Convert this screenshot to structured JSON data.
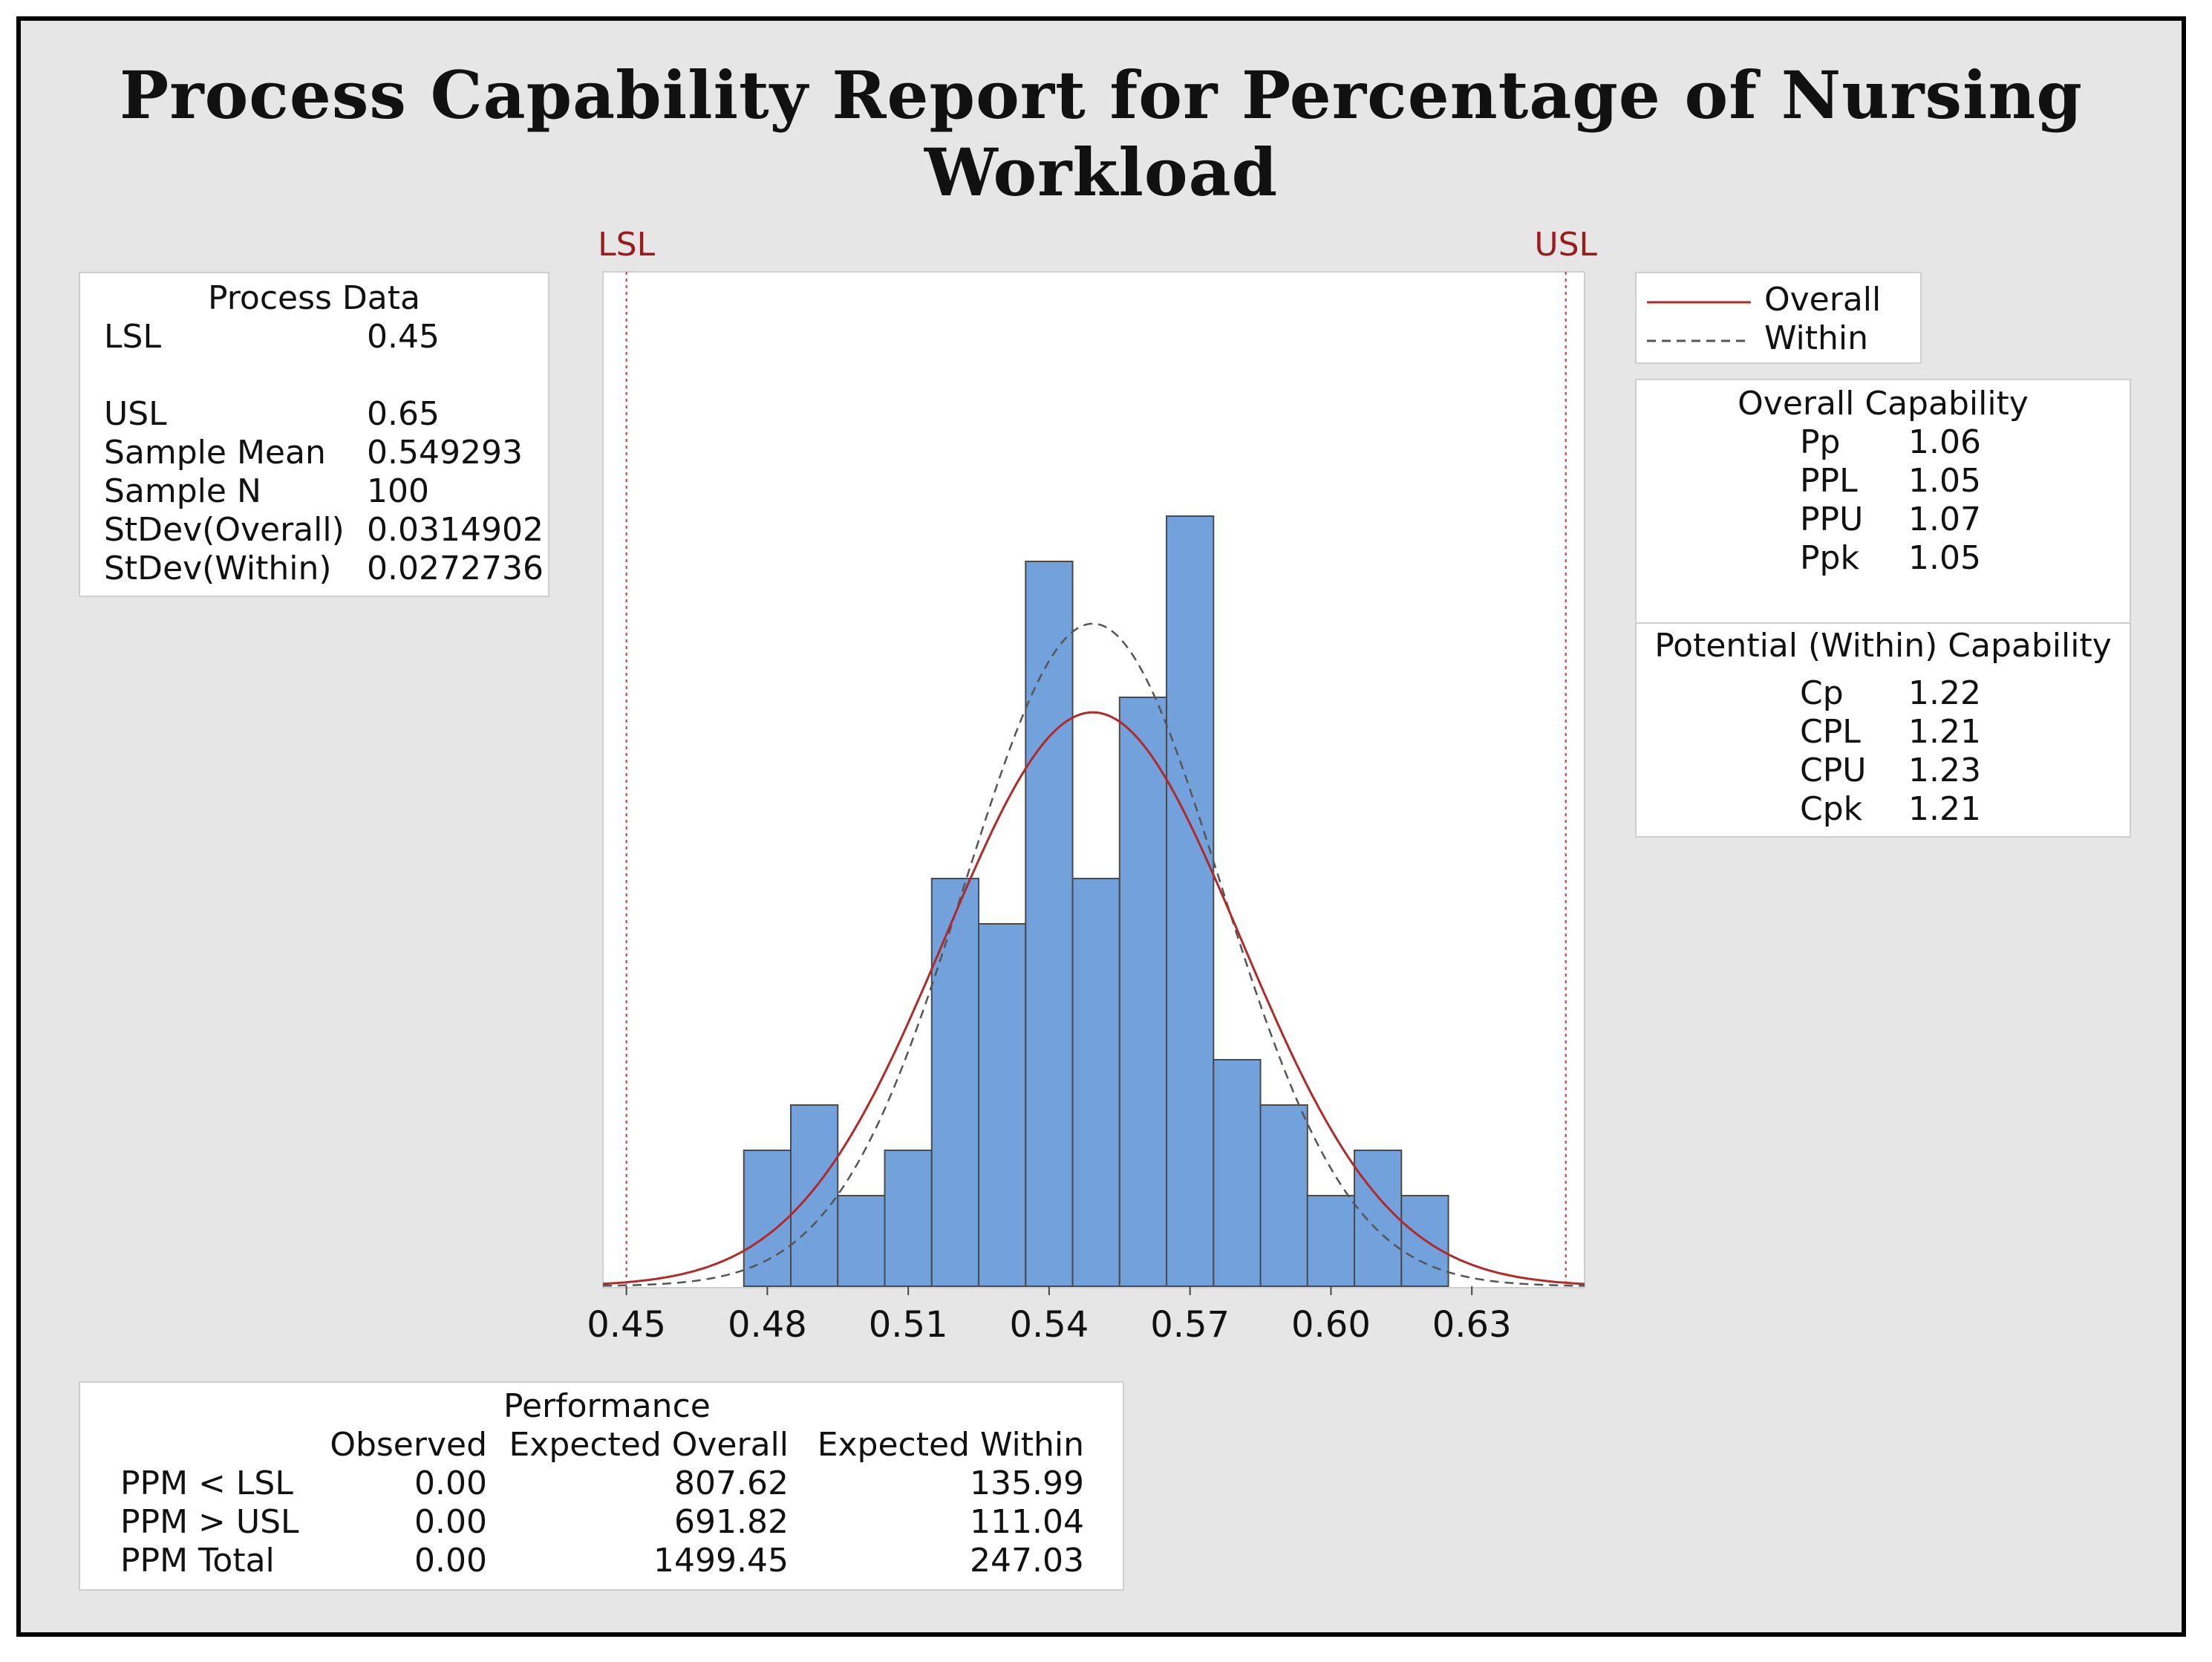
{
  "title": "Process Capability Report for Percentage of Nursing Workload",
  "process_data": {
    "heading": "Process Data",
    "rows": [
      {
        "label": "LSL",
        "value": "0.45"
      },
      {
        "label": "USL",
        "value": "0.65"
      },
      {
        "label": "Sample Mean",
        "value": "0.549293"
      },
      {
        "label": "Sample N",
        "value": "100"
      },
      {
        "label": "StDev(Overall)",
        "value": "0.0314902"
      },
      {
        "label": "StDev(Within)",
        "value": "0.0272736"
      }
    ]
  },
  "legend": {
    "overall": "Overall",
    "within": "Within"
  },
  "overall_capability": {
    "heading": "Overall Capability",
    "rows": [
      {
        "label": "Pp",
        "value": "1.06"
      },
      {
        "label": "PPL",
        "value": "1.05"
      },
      {
        "label": "PPU",
        "value": "1.07"
      },
      {
        "label": "Ppk",
        "value": "1.05"
      }
    ]
  },
  "within_capability": {
    "heading": "Potential (Within) Capability",
    "rows": [
      {
        "label": "Cp",
        "value": "1.22"
      },
      {
        "label": "CPL",
        "value": "1.21"
      },
      {
        "label": "CPU",
        "value": "1.23"
      },
      {
        "label": "Cpk",
        "value": "1.21"
      }
    ]
  },
  "performance": {
    "heading": "Performance",
    "columns": [
      "Observed",
      "Expected Overall",
      "Expected Within"
    ],
    "rows": [
      {
        "label": "PPM < LSL",
        "values": [
          "0.00",
          "807.62",
          "135.99"
        ]
      },
      {
        "label": "PPM > USL",
        "values": [
          "0.00",
          "691.82",
          "111.04"
        ]
      },
      {
        "label": "PPM Total",
        "values": [
          "0.00",
          "1499.45",
          "247.03"
        ]
      }
    ]
  },
  "colors": {
    "bar_fill": "#73a1dc",
    "bar_stroke": "#4a4a4a",
    "overall_curve": "#b02a2a",
    "within_curve": "#555555",
    "spec_line": "#c8383f",
    "spec_label": "#9b1c1c"
  },
  "chart_data": {
    "type": "histogram",
    "title": "Process Capability Report for Percentage of Nursing Workload",
    "bin_width": 0.01,
    "bin_starts": [
      0.475,
      0.485,
      0.495,
      0.505,
      0.515,
      0.525,
      0.535,
      0.545,
      0.555,
      0.565,
      0.575,
      0.585,
      0.595,
      0.605,
      0.615
    ],
    "counts": [
      3,
      4,
      2,
      3,
      9,
      8,
      16,
      9,
      13,
      17,
      5,
      4,
      2,
      3,
      2
    ],
    "xlim": [
      0.445,
      0.654
    ],
    "x_ticks": [
      "0.45",
      "0.48",
      "0.51",
      "0.54",
      "0.57",
      "0.60",
      "0.63"
    ],
    "x_tick_values": [
      0.45,
      0.48,
      0.51,
      0.54,
      0.57,
      0.6,
      0.63
    ],
    "spec_limits": {
      "LSL": 0.45,
      "USL": 0.65
    },
    "spec_labels": {
      "lsl": "LSL",
      "usl": "USL"
    },
    "mean": 0.549293,
    "n": 100,
    "stdev_overall": 0.0314902,
    "stdev_within": 0.0272736,
    "curves": [
      {
        "name": "Overall",
        "style": "solid"
      },
      {
        "name": "Within",
        "style": "dashed"
      }
    ]
  }
}
